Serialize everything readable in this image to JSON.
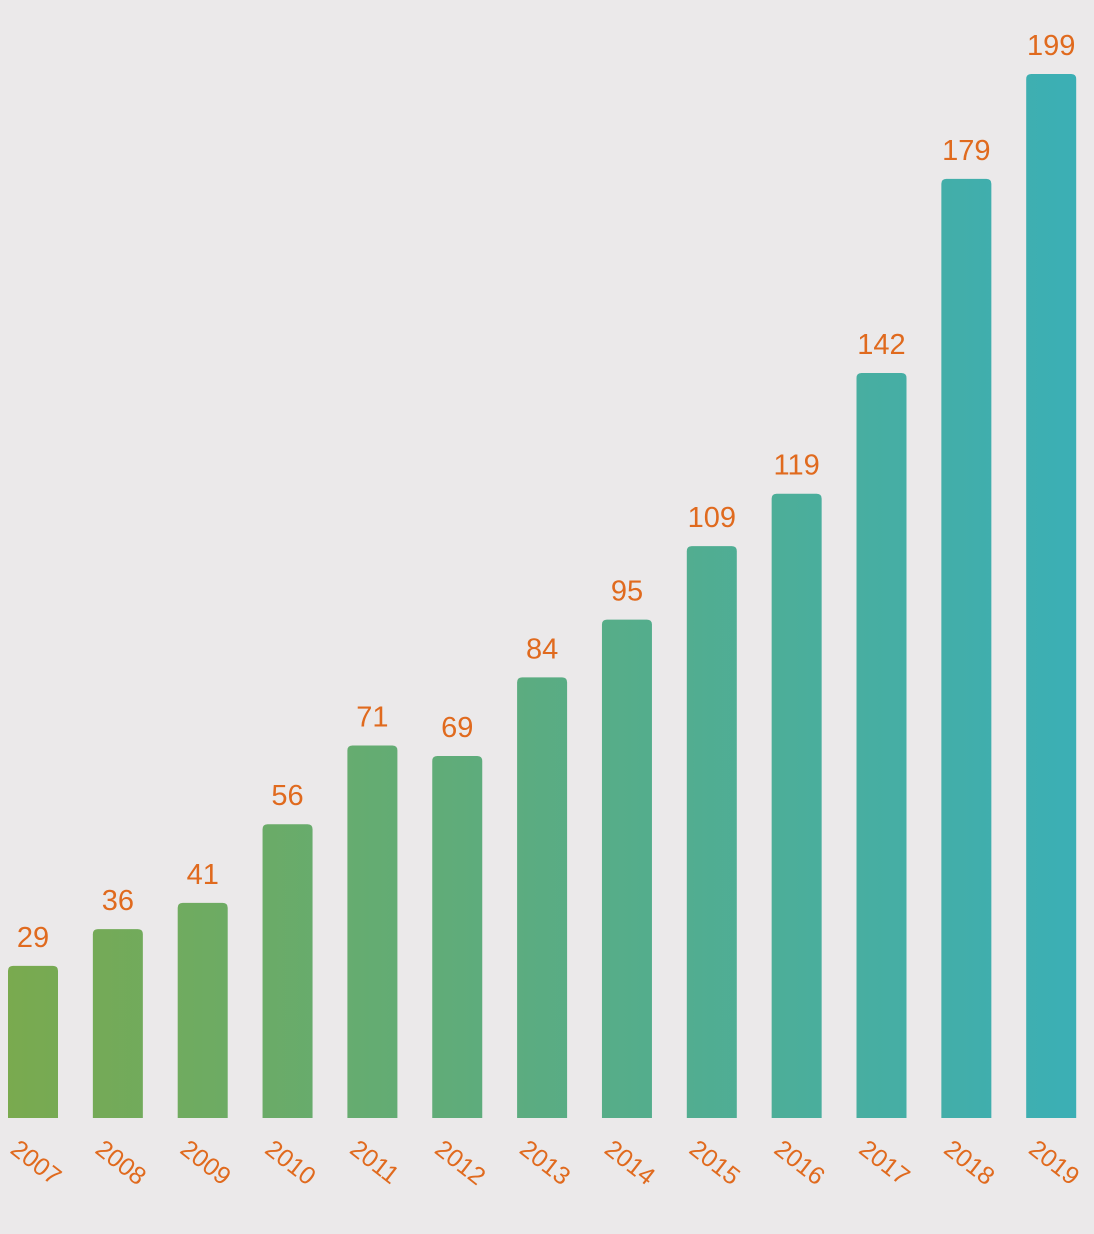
{
  "chart_data": {
    "type": "bar",
    "categories": [
      "2007",
      "2008",
      "2009",
      "2010",
      "2011",
      "2012",
      "2013",
      "2014",
      "2015",
      "2016",
      "2017",
      "2018",
      "2019"
    ],
    "values": [
      29,
      36,
      41,
      56,
      71,
      69,
      84,
      95,
      109,
      119,
      142,
      179,
      199
    ],
    "title": "",
    "xlabel": "",
    "ylabel": "",
    "ylim": [
      0,
      199
    ],
    "grid": false,
    "legend": "none",
    "data_labels": true,
    "tick_label_rotation": "diagonal"
  },
  "colors": {
    "background": "#ebe9ea",
    "bar_start": "#7aaa4e",
    "bar_end": "#3aafb7",
    "label": "#e06a1e"
  }
}
